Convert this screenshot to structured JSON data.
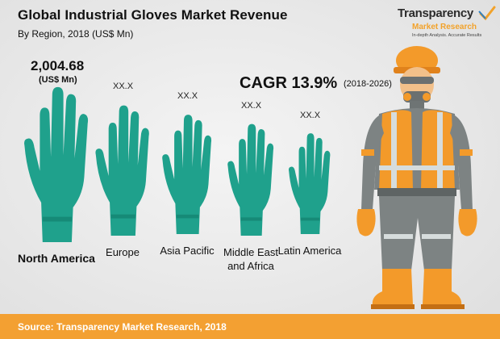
{
  "header": {
    "title": "Global Industrial Gloves Market Revenue",
    "subtitle": "By Region, 2018 (US$ Mn)"
  },
  "logo": {
    "line1": "Transparency",
    "line2": "Market Research",
    "tagline": "In-depth Analysis. Accurate Results"
  },
  "cagr": {
    "label": "CAGR 13.9%",
    "period": "(2018-2026)"
  },
  "source": "Source: Transparency Market Research, 2018",
  "colors": {
    "glove": "#1fa18c",
    "glove_shadow": "#168a77",
    "accent": "#f3a032",
    "vest": "#f39a2a"
  },
  "chart_data": {
    "type": "bar",
    "title": "Global Industrial Gloves Market Revenue",
    "subtitle": "By Region, 2018 (US$ Mn)",
    "categories": [
      "North America",
      "Europe",
      "Asia Pacific",
      "Middle East and Africa",
      "Latin America"
    ],
    "value_labels": [
      "2,004.68",
      "XX.X",
      "XX.X",
      "XX.X",
      "XX.X"
    ],
    "value_unit": "(US$ Mn)",
    "values": [
      2004.68,
      null,
      null,
      null,
      null
    ],
    "relative_size": [
      1.0,
      0.84,
      0.77,
      0.72,
      0.65
    ],
    "mark": "glove-icon"
  }
}
